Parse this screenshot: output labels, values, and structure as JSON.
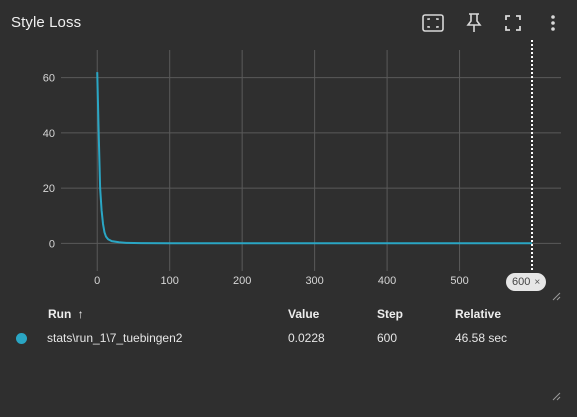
{
  "card": {
    "title": "Style Loss",
    "toolbar": [
      {
        "name": "fit-domain-icon"
      },
      {
        "name": "pin-icon"
      },
      {
        "name": "fullscreen-icon"
      },
      {
        "name": "more-vert-icon"
      }
    ]
  },
  "step_selector": {
    "value": "600",
    "close": "×"
  },
  "table": {
    "headers": {
      "run": "Run",
      "sort_arrow": "↑",
      "value": "Value",
      "step": "Step",
      "relative": "Relative"
    },
    "rows": [
      {
        "run": "stats\\run_1\\7_tuebingen2",
        "value": "0.0228",
        "step": "600",
        "relative": "46.58 sec",
        "color": "#2aa6c4"
      }
    ]
  },
  "colors": {
    "background": "#2f2f2f",
    "series": "#2aa6c4",
    "grid": "#5a5a5a"
  },
  "chart_data": {
    "type": "line",
    "title": "",
    "xlabel": "",
    "ylabel": "",
    "xlim": [
      -50,
      640
    ],
    "ylim": [
      -10,
      70
    ],
    "x_ticks": [
      "0",
      "100",
      "200",
      "300",
      "400",
      "500"
    ],
    "y_ticks": [
      "0",
      "20",
      "40",
      "60"
    ],
    "grid": true,
    "series": [
      {
        "name": "",
        "x": [
          0,
          2,
          4,
          6,
          8,
          10,
          12,
          15,
          20,
          30,
          40,
          60,
          100,
          200,
          300,
          400,
          500,
          600
        ],
        "y": [
          62,
          40,
          20,
          12,
          7,
          4,
          2.5,
          1.5,
          0.8,
          0.4,
          0.2,
          0.1,
          0.05,
          0.03,
          0.03,
          0.03,
          0.025,
          0.0228
        ]
      }
    ],
    "step_marker": 600
  }
}
